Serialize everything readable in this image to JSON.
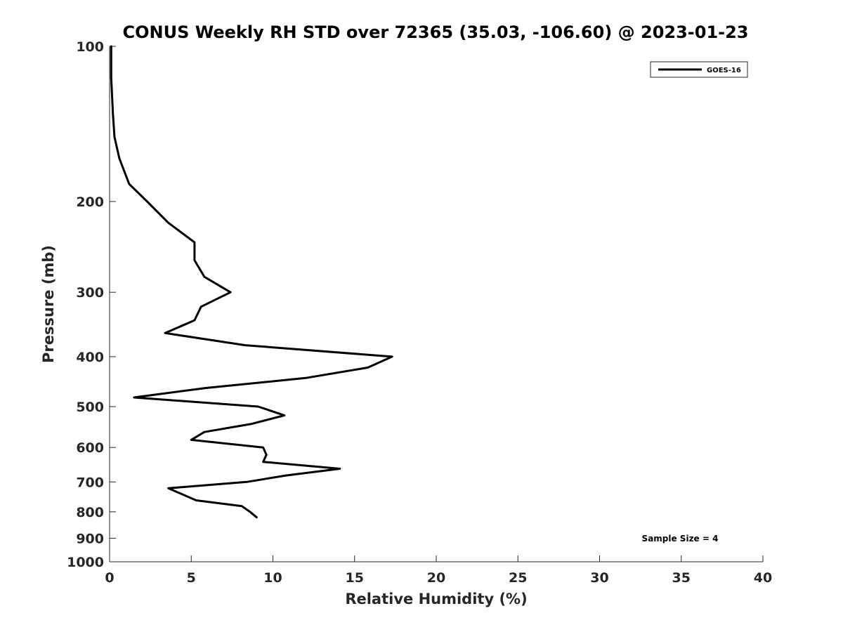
{
  "chart_data": {
    "type": "line",
    "title": "CONUS Weekly RH STD over 72365 (35.03, -106.60) @ 2023-01-23",
    "xlabel": "Relative Humidity (%)",
    "ylabel": "Pressure (mb)",
    "xlim": [
      0,
      40
    ],
    "ylim": [
      1000,
      100
    ],
    "y_scale": "log",
    "x_ticks": [
      "0",
      "5",
      "10",
      "15",
      "20",
      "25",
      "30",
      "35",
      "40"
    ],
    "y_ticks": [
      "100",
      "200",
      "300",
      "400",
      "500",
      "600",
      "700",
      "800",
      "900",
      "1000"
    ],
    "grid": false,
    "legend_position": "top-right",
    "annotation": "Sample Size = 4",
    "series": [
      {
        "name": "GOES-16",
        "color": "#000000",
        "points": [
          [
            0.1,
            100
          ],
          [
            0.1,
            115
          ],
          [
            0.2,
            135
          ],
          [
            0.3,
            150
          ],
          [
            0.6,
            165
          ],
          [
            1.2,
            185
          ],
          [
            2.3,
            200
          ],
          [
            3.6,
            220
          ],
          [
            5.2,
            240
          ],
          [
            5.2,
            260
          ],
          [
            5.8,
            280
          ],
          [
            7.4,
            300
          ],
          [
            5.6,
            320
          ],
          [
            5.2,
            340
          ],
          [
            3.4,
            360
          ],
          [
            8.3,
            380
          ],
          [
            17.3,
            400
          ],
          [
            15.8,
            420
          ],
          [
            12.0,
            440
          ],
          [
            5.9,
            460
          ],
          [
            1.5,
            480
          ],
          [
            9.1,
            500
          ],
          [
            10.7,
            520
          ],
          [
            8.7,
            540
          ],
          [
            5.8,
            560
          ],
          [
            5.0,
            580
          ],
          [
            9.4,
            600
          ],
          [
            9.6,
            620
          ],
          [
            9.4,
            640
          ],
          [
            14.1,
            660
          ],
          [
            10.8,
            680
          ],
          [
            8.4,
            700
          ],
          [
            3.6,
            720
          ],
          [
            5.3,
            760
          ],
          [
            8.1,
            780
          ],
          [
            8.6,
            800
          ],
          [
            9.0,
            820
          ]
        ]
      }
    ]
  }
}
